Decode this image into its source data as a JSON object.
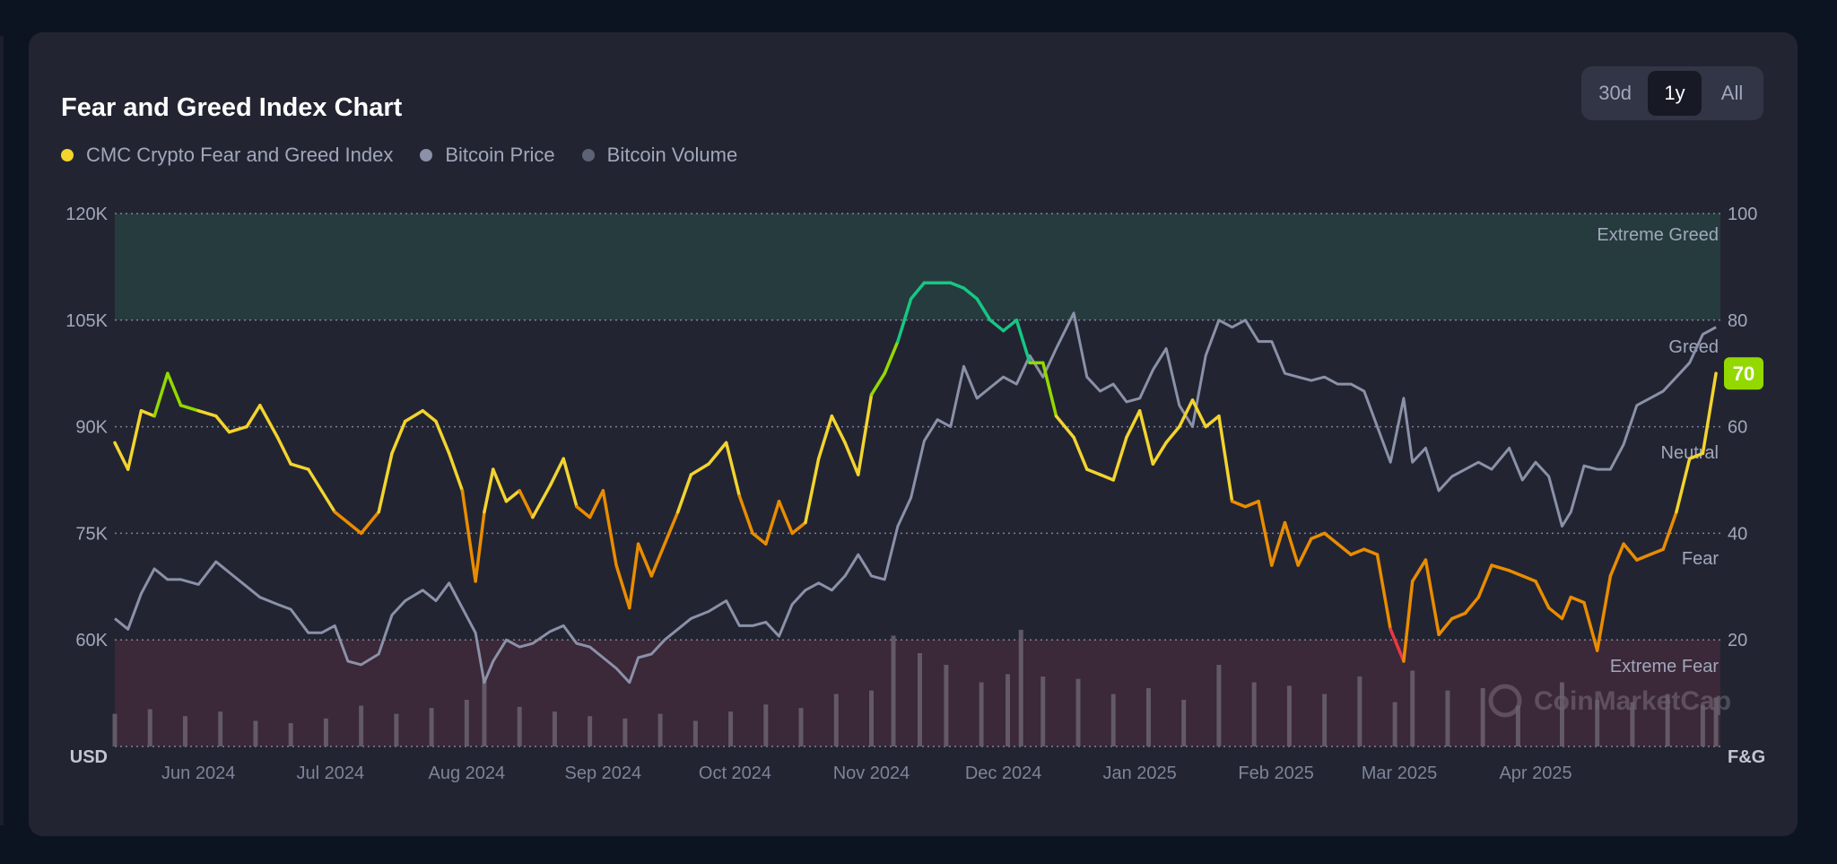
{
  "chart_title": "Fear and Greed Index Chart",
  "timeframes": [
    {
      "label": "30d",
      "active": false
    },
    {
      "label": "1y",
      "active": true
    },
    {
      "label": "All",
      "active": false
    }
  ],
  "legend": [
    {
      "label": "CMC Crypto Fear and Greed Index",
      "color": "#f3d42f"
    },
    {
      "label": "Bitcoin Price",
      "color": "#8a91a8"
    },
    {
      "label": "Bitcoin Volume",
      "color": "#5d6275"
    }
  ],
  "watermark": "CoinMarketCap",
  "colors": {
    "extreme_greed": "#16c784",
    "greed": "#93d900",
    "neutral": "#f3d42f",
    "fear": "#ea8c00",
    "extreme_fear": "#ea3943",
    "price_line": "#8a91a8",
    "volume_bar": "#6b6270",
    "extreme_greed_band": "#263b3e",
    "extreme_fear_band": "#3b2838"
  },
  "chart_data": {
    "type": "line",
    "x_ticks": [
      "Jun 2024",
      "Jul 2024",
      "Aug 2024",
      "Sep 2024",
      "Oct 2024",
      "Nov 2024",
      "Dec 2024",
      "Jan 2025",
      "Feb 2025",
      "Mar 2025",
      "Apr 2025"
    ],
    "x_start": "2024-05-13",
    "x_end": "2025-05-13",
    "y_left": {
      "label": "USD",
      "min": 45000,
      "max": 120000,
      "ticks": [
        "120K",
        "105K",
        "90K",
        "75K",
        "60K"
      ],
      "tick_values": [
        120000,
        105000,
        90000,
        75000,
        60000
      ]
    },
    "y_right": {
      "label": "F&G",
      "min": 0,
      "max": 100,
      "ticks": [
        "100",
        "80",
        "60",
        "40",
        "20"
      ],
      "tick_values": [
        100,
        80,
        60,
        40,
        20
      ]
    },
    "zones": [
      {
        "label": "Extreme Greed",
        "min": 80,
        "max": 100
      },
      {
        "label": "Greed",
        "min": 60,
        "max": 80
      },
      {
        "label": "Neutral",
        "min": 40,
        "max": 60
      },
      {
        "label": "Fear",
        "min": 20,
        "max": 40
      },
      {
        "label": "Extreme Fear",
        "min": 0,
        "max": 20
      }
    ],
    "current_value": "70",
    "series": [
      {
        "name": "CMC Crypto Fear and Greed Index",
        "axis": "right",
        "x": [
          "2024-05-13",
          "2024-05-16",
          "2024-05-19",
          "2024-05-22",
          "2024-05-25",
          "2024-05-28",
          "2024-06-01",
          "2024-06-05",
          "2024-06-08",
          "2024-06-12",
          "2024-06-15",
          "2024-06-19",
          "2024-06-22",
          "2024-06-26",
          "2024-06-29",
          "2024-07-02",
          "2024-07-05",
          "2024-07-08",
          "2024-07-12",
          "2024-07-15",
          "2024-07-18",
          "2024-07-22",
          "2024-07-25",
          "2024-07-28",
          "2024-07-31",
          "2024-08-03",
          "2024-08-05",
          "2024-08-07",
          "2024-08-10",
          "2024-08-13",
          "2024-08-16",
          "2024-08-20",
          "2024-08-23",
          "2024-08-26",
          "2024-08-29",
          "2024-09-01",
          "2024-09-04",
          "2024-09-07",
          "2024-09-09",
          "2024-09-12",
          "2024-09-15",
          "2024-09-18",
          "2024-09-21",
          "2024-09-25",
          "2024-09-29",
          "2024-10-02",
          "2024-10-05",
          "2024-10-08",
          "2024-10-11",
          "2024-10-14",
          "2024-10-17",
          "2024-10-20",
          "2024-10-23",
          "2024-10-26",
          "2024-10-29",
          "2024-11-01",
          "2024-11-04",
          "2024-11-07",
          "2024-11-10",
          "2024-11-13",
          "2024-11-16",
          "2024-11-19",
          "2024-11-22",
          "2024-11-25",
          "2024-11-28",
          "2024-12-01",
          "2024-12-04",
          "2024-12-07",
          "2024-12-10",
          "2024-12-13",
          "2024-12-17",
          "2024-12-20",
          "2024-12-23",
          "2024-12-26",
          "2024-12-29",
          "2025-01-01",
          "2025-01-04",
          "2025-01-07",
          "2025-01-10",
          "2025-01-13",
          "2025-01-16",
          "2025-01-19",
          "2025-01-22",
          "2025-01-25",
          "2025-01-28",
          "2025-01-31",
          "2025-02-03",
          "2025-02-06",
          "2025-02-09",
          "2025-02-12",
          "2025-02-15",
          "2025-02-18",
          "2025-02-21",
          "2025-02-24",
          "2025-02-27",
          "2025-03-02",
          "2025-03-04",
          "2025-03-07",
          "2025-03-10",
          "2025-03-13",
          "2025-03-16",
          "2025-03-19",
          "2025-03-22",
          "2025-03-26",
          "2025-03-29",
          "2025-04-01",
          "2025-04-04",
          "2025-04-07",
          "2025-04-09",
          "2025-04-12",
          "2025-04-15",
          "2025-04-18",
          "2025-04-21",
          "2025-04-24",
          "2025-04-27",
          "2025-04-30",
          "2025-05-03",
          "2025-05-06",
          "2025-05-09",
          "2025-05-12"
        ],
        "values": [
          57,
          52,
          63,
          62,
          70,
          64,
          63,
          62,
          59,
          60,
          64,
          58,
          53,
          52,
          48,
          44,
          42,
          40,
          44,
          55,
          61,
          63,
          61,
          55,
          48,
          31,
          44,
          52,
          46,
          48,
          43,
          49,
          54,
          45,
          43,
          48,
          34,
          26,
          38,
          32,
          38,
          44,
          51,
          53,
          57,
          47,
          40,
          38,
          46,
          40,
          42,
          54,
          62,
          57,
          51,
          66,
          70,
          76,
          84,
          87,
          87,
          87,
          86,
          84,
          80,
          78,
          80,
          72,
          72,
          62,
          58,
          52,
          51,
          50,
          58,
          63,
          53,
          57,
          60,
          65,
          60,
          62,
          46,
          45,
          46,
          34,
          42,
          34,
          39,
          40,
          38,
          36,
          37,
          36,
          22,
          16,
          31,
          35,
          21,
          24,
          25,
          28,
          34,
          33,
          32,
          31,
          26,
          24,
          28,
          27,
          18,
          32,
          38,
          35,
          36,
          37,
          44,
          54,
          55,
          70
        ]
      },
      {
        "name": "Bitcoin Price",
        "axis": "left",
        "x": [
          "2024-05-13",
          "2024-05-16",
          "2024-05-19",
          "2024-05-22",
          "2024-05-25",
          "2024-05-28",
          "2024-06-01",
          "2024-06-05",
          "2024-06-08",
          "2024-06-12",
          "2024-06-15",
          "2024-06-19",
          "2024-06-22",
          "2024-06-26",
          "2024-06-29",
          "2024-07-02",
          "2024-07-05",
          "2024-07-08",
          "2024-07-12",
          "2024-07-15",
          "2024-07-18",
          "2024-07-22",
          "2024-07-25",
          "2024-07-28",
          "2024-07-31",
          "2024-08-03",
          "2024-08-05",
          "2024-08-07",
          "2024-08-10",
          "2024-08-13",
          "2024-08-16",
          "2024-08-20",
          "2024-08-23",
          "2024-08-26",
          "2024-08-29",
          "2024-09-01",
          "2024-09-04",
          "2024-09-07",
          "2024-09-09",
          "2024-09-12",
          "2024-09-15",
          "2024-09-18",
          "2024-09-21",
          "2024-09-25",
          "2024-09-29",
          "2024-10-02",
          "2024-10-05",
          "2024-10-08",
          "2024-10-11",
          "2024-10-14",
          "2024-10-17",
          "2024-10-20",
          "2024-10-23",
          "2024-10-26",
          "2024-10-29",
          "2024-11-01",
          "2024-11-04",
          "2024-11-07",
          "2024-11-10",
          "2024-11-13",
          "2024-11-16",
          "2024-11-19",
          "2024-11-22",
          "2024-11-25",
          "2024-11-28",
          "2024-12-01",
          "2024-12-04",
          "2024-12-07",
          "2024-12-10",
          "2024-12-13",
          "2024-12-17",
          "2024-12-20",
          "2024-12-23",
          "2024-12-26",
          "2024-12-29",
          "2025-01-01",
          "2025-01-04",
          "2025-01-07",
          "2025-01-10",
          "2025-01-13",
          "2025-01-16",
          "2025-01-19",
          "2025-01-22",
          "2025-01-25",
          "2025-01-28",
          "2025-01-31",
          "2025-02-03",
          "2025-02-06",
          "2025-02-09",
          "2025-02-12",
          "2025-02-15",
          "2025-02-18",
          "2025-02-21",
          "2025-02-24",
          "2025-02-27",
          "2025-03-02",
          "2025-03-04",
          "2025-03-07",
          "2025-03-10",
          "2025-03-13",
          "2025-03-16",
          "2025-03-19",
          "2025-03-22",
          "2025-03-26",
          "2025-03-29",
          "2025-04-01",
          "2025-04-04",
          "2025-04-07",
          "2025-04-09",
          "2025-04-12",
          "2025-04-15",
          "2025-04-18",
          "2025-04-21",
          "2025-04-24",
          "2025-04-27",
          "2025-04-30",
          "2025-05-03",
          "2025-05-06",
          "2025-05-09",
          "2025-05-12"
        ],
        "values": [
          63000,
          61500,
          66500,
          70000,
          68500,
          68500,
          67800,
          71000,
          69500,
          67500,
          66000,
          65000,
          64300,
          61000,
          61000,
          62000,
          57000,
          56500,
          58000,
          63500,
          65500,
          67000,
          65500,
          68000,
          64500,
          61000,
          54000,
          57000,
          60000,
          59000,
          59500,
          61200,
          62000,
          59500,
          59000,
          57500,
          56000,
          54000,
          57500,
          58000,
          60000,
          61500,
          63000,
          64000,
          65500,
          62000,
          62000,
          62500,
          60500,
          65000,
          67000,
          68000,
          67000,
          69000,
          72000,
          69000,
          68500,
          76000,
          80000,
          88000,
          91000,
          90000,
          98500,
          94000,
          95500,
          97000,
          96000,
          100000,
          97000,
          101000,
          106000,
          97000,
          95000,
          96000,
          93500,
          94000,
          98000,
          101000,
          93000,
          90000,
          100000,
          105000,
          104000,
          105000,
          102000,
          102000,
          97500,
          97000,
          96500,
          97000,
          96000,
          96000,
          95000,
          90000,
          85000,
          94000,
          85000,
          87000,
          81000,
          83000,
          84000,
          85000,
          84000,
          87000,
          82500,
          85000,
          83000,
          76000,
          78000,
          84500,
          84000,
          84000,
          87500,
          93000,
          94000,
          95000,
          97000,
          99000,
          103000,
          104000
        ]
      },
      {
        "name": "Bitcoin Volume",
        "axis": "left_bars",
        "x": [
          "2024-05-13",
          "2024-05-21",
          "2024-05-29",
          "2024-06-06",
          "2024-06-14",
          "2024-06-22",
          "2024-06-30",
          "2024-07-08",
          "2024-07-16",
          "2024-07-24",
          "2024-08-01",
          "2024-08-05",
          "2024-08-13",
          "2024-08-21",
          "2024-08-29",
          "2024-09-06",
          "2024-09-14",
          "2024-09-22",
          "2024-09-30",
          "2024-10-08",
          "2024-10-16",
          "2024-10-24",
          "2024-11-01",
          "2024-11-06",
          "2024-11-12",
          "2024-11-18",
          "2024-11-26",
          "2024-12-02",
          "2024-12-05",
          "2024-12-10",
          "2024-12-18",
          "2024-12-26",
          "2025-01-03",
          "2025-01-11",
          "2025-01-19",
          "2025-01-27",
          "2025-02-04",
          "2025-02-12",
          "2025-02-20",
          "2025-02-28",
          "2025-03-04",
          "2025-03-12",
          "2025-03-20",
          "2025-03-28",
          "2025-04-07",
          "2025-04-15",
          "2025-04-23",
          "2025-05-01",
          "2025-05-09",
          "2025-05-12"
        ],
        "values": [
          28,
          32,
          26,
          30,
          22,
          20,
          24,
          35,
          28,
          33,
          40,
          60,
          34,
          30,
          26,
          24,
          28,
          22,
          30,
          36,
          33,
          45,
          48,
          95,
          80,
          70,
          55,
          62,
          100,
          60,
          58,
          45,
          50,
          40,
          70,
          55,
          52,
          45,
          60,
          38,
          65,
          48,
          50,
          35,
          55,
          40,
          38,
          45,
          35,
          42
        ]
      }
    ]
  }
}
